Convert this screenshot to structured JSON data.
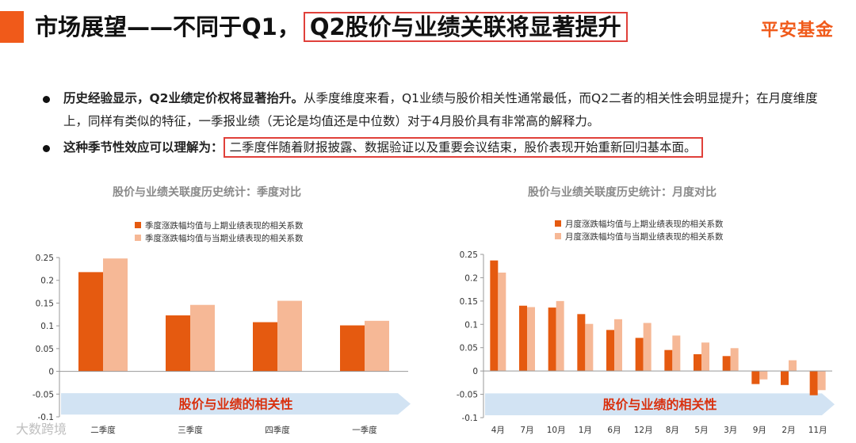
{
  "header": {
    "title_main": "市场展望——不同于Q1，",
    "title_boxed": "Q2股价与业绩关联将显著提升",
    "brand": "平安基金",
    "accent_color": "#f05a1a"
  },
  "bullets": [
    {
      "bold": "历史经验显示，Q2业绩定价权将显著抬升。",
      "text": "从季度维度来看，Q1业绩与股价相关性通常最低，而Q2二者的相关性会明显提升；在月度维度上，同样有类似的特征，一季报业绩（无论是均值还是中位数）对于4月股价具有非常高的解释力。"
    },
    {
      "bold": "这种季节性效应可以理解为：",
      "boxed": "二季度伴随着财报披露、数据验证以及重要会议结束，股价表现开始重新回归基本面。"
    }
  ],
  "colors": {
    "dark": "#e55a10",
    "light": "#f6b896",
    "banner": "#d2e3f3",
    "banner_text": "#d9300e"
  },
  "banner_label": "股价与业绩的相关性",
  "watermark": "大数跨境",
  "chart_data": [
    {
      "type": "bar",
      "title": "股价与业绩关联度历史统计：季度对比",
      "categories": [
        "二季度",
        "三季度",
        "四季度",
        "一季度"
      ],
      "series": [
        {
          "name": "季度涨跌幅均值与上期业绩表现的相关系数",
          "values": [
            0.218,
            0.123,
            0.108,
            0.101
          ]
        },
        {
          "name": "季度涨跌幅均值与当期业绩表现的相关系数",
          "values": [
            0.248,
            0.146,
            0.155,
            0.111
          ]
        }
      ],
      "ylim": [
        -0.1,
        0.25
      ],
      "yticks": [
        "-0.1",
        "-0.05",
        "0",
        "0.05",
        "0.1",
        "0.15",
        "0.2",
        "0.25"
      ],
      "legend_position": "top-left"
    },
    {
      "type": "bar",
      "title": "股价与业绩关联度历史统计：月度对比",
      "categories": [
        "4月",
        "7月",
        "10月",
        "1月",
        "6月",
        "12月",
        "8月",
        "5月",
        "3月",
        "9月",
        "2月",
        "11月"
      ],
      "series": [
        {
          "name": "月度涨跌幅均值与上期业绩表现的相关系数",
          "values": [
            0.237,
            0.14,
            0.136,
            0.122,
            0.088,
            0.071,
            0.045,
            0.036,
            0.032,
            -0.028,
            -0.03,
            -0.052
          ]
        },
        {
          "name": "月度涨跌幅均值与当期业绩表现的相关系数",
          "values": [
            0.211,
            0.137,
            0.15,
            0.101,
            0.111,
            0.103,
            0.076,
            0.061,
            0.049,
            -0.018,
            0.023,
            -0.041
          ]
        }
      ],
      "ylim": [
        -0.1,
        0.25
      ],
      "yticks": [
        "-0.1",
        "-0.05",
        "0",
        "0.05",
        "0.1",
        "0.15",
        "0.2",
        "0.25"
      ],
      "legend_position": "top-left"
    }
  ]
}
